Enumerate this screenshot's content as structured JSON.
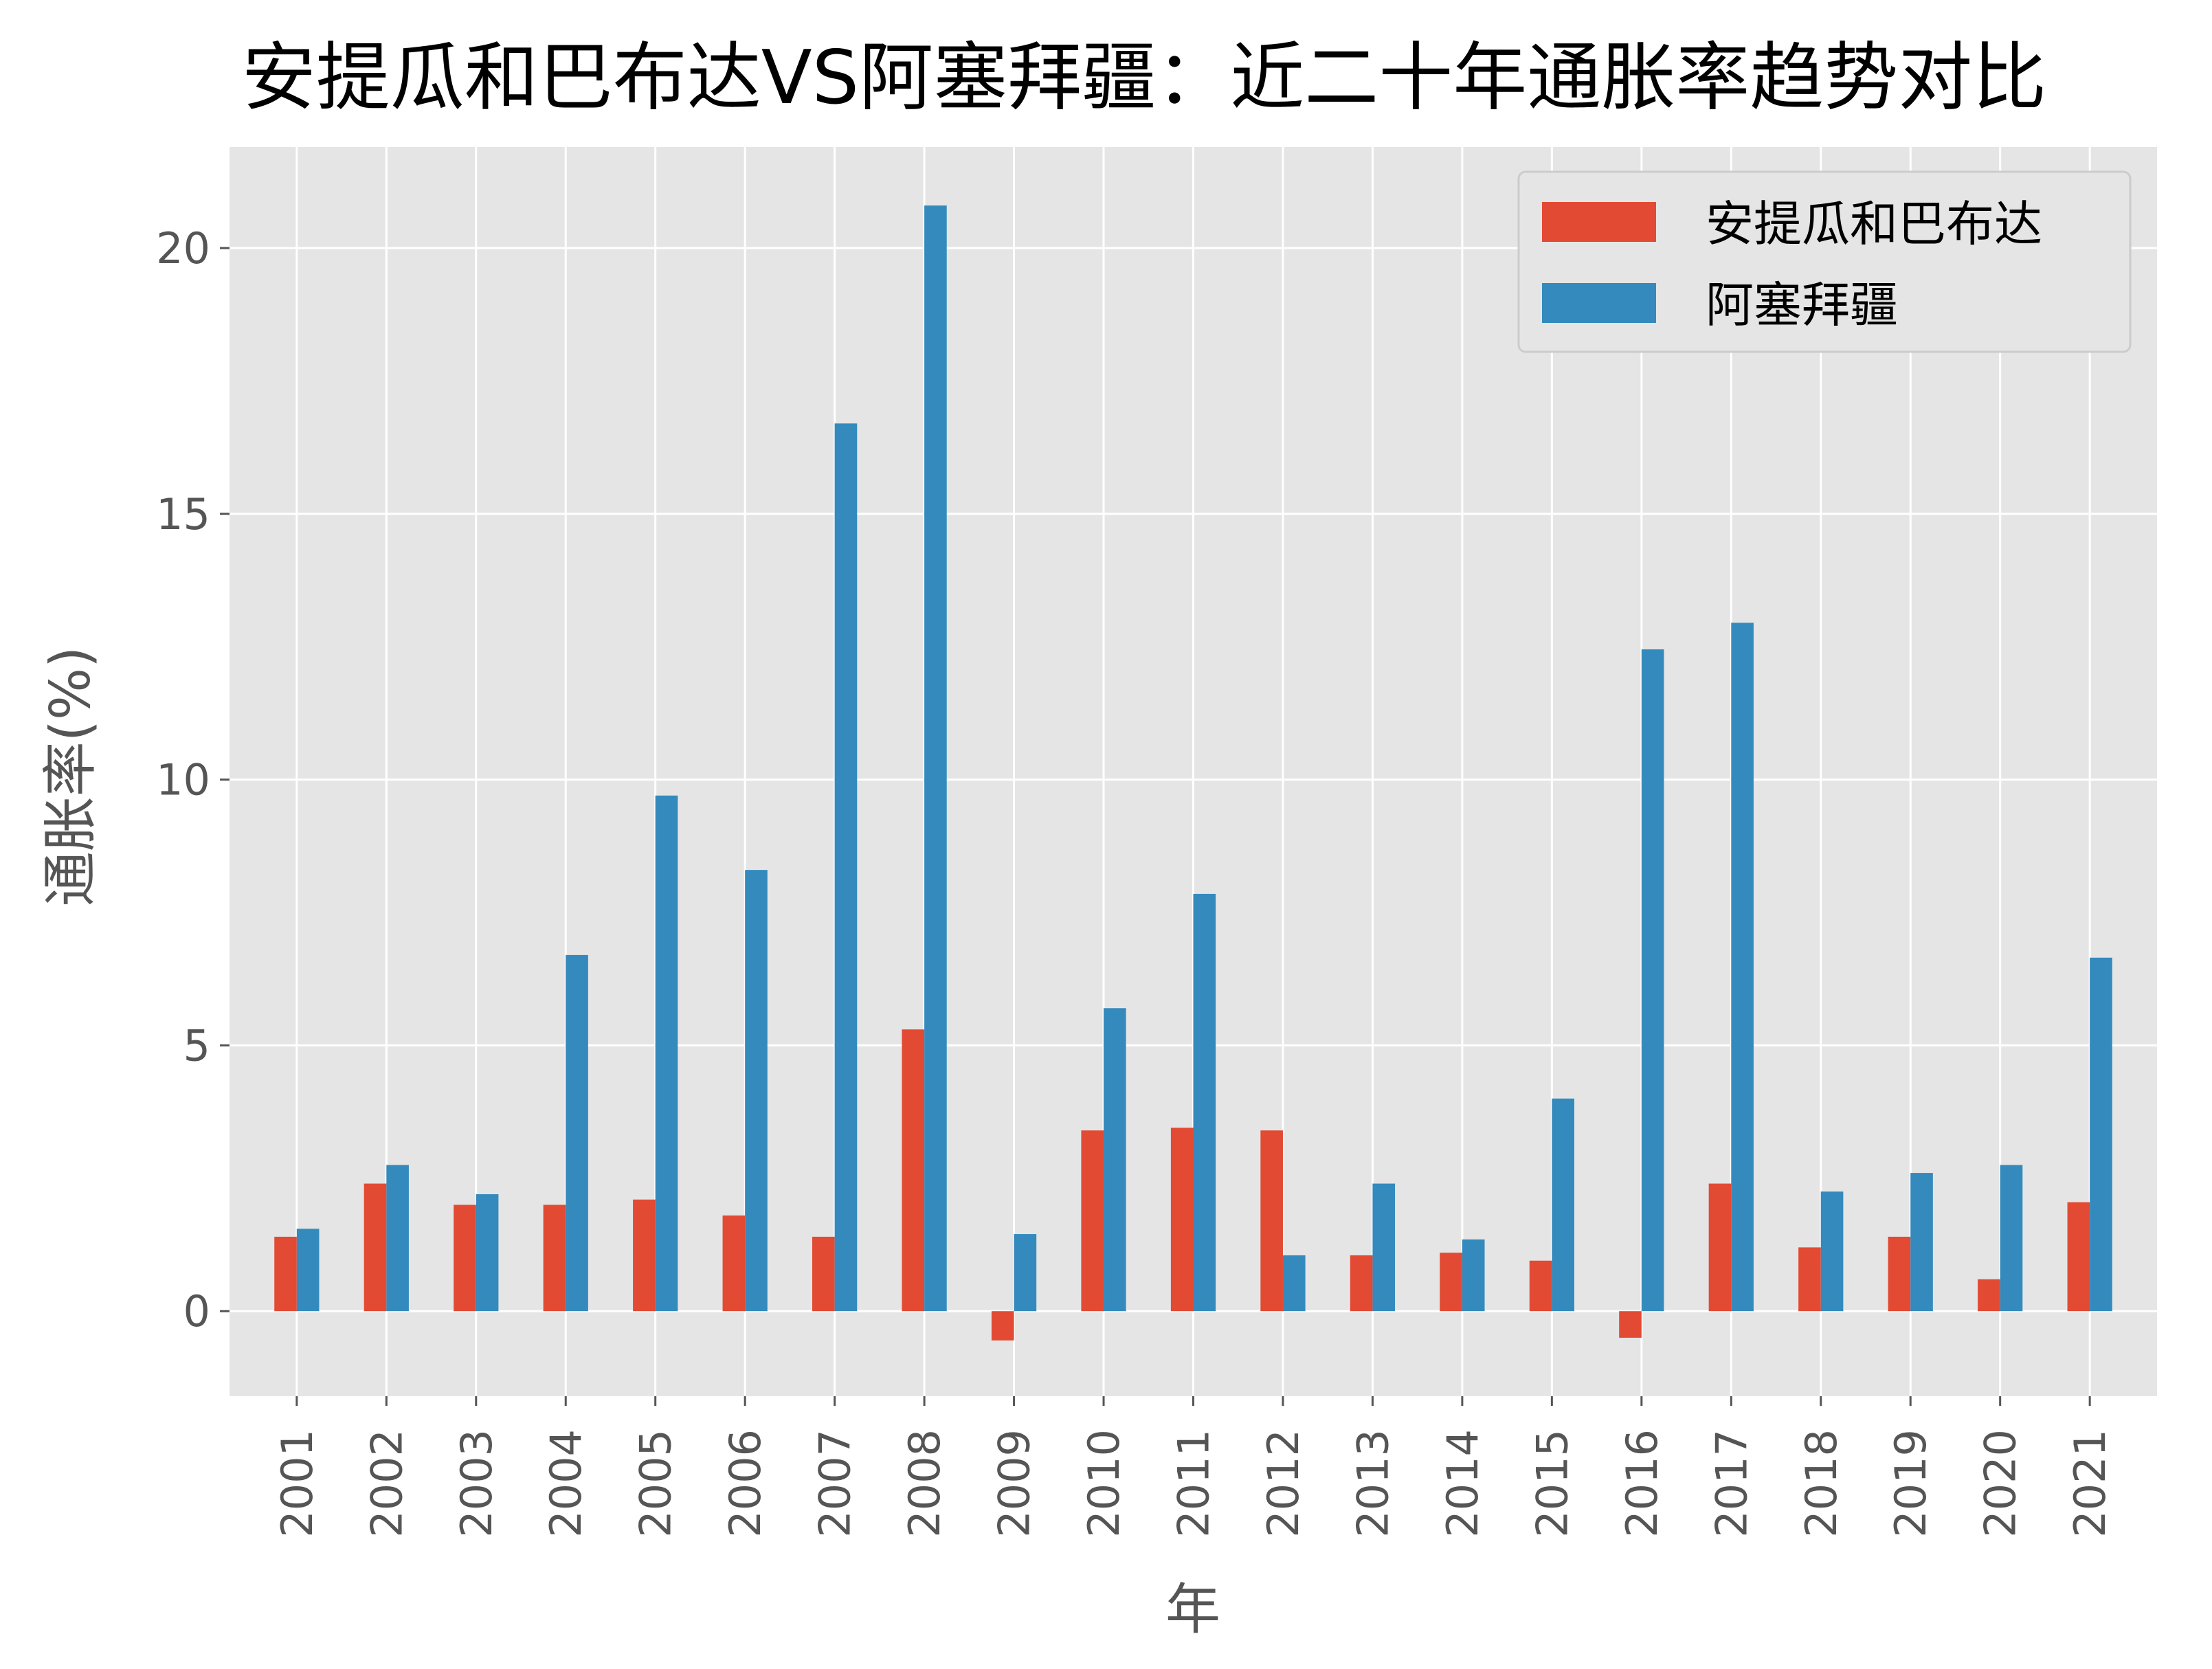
{
  "chart_data": {
    "type": "bar",
    "title": "安提瓜和巴布达VS阿塞拜疆：近二十年通胀率趋势对比",
    "xlabel": "年",
    "ylabel": "通胀率(%)",
    "categories": [
      "2001",
      "2002",
      "2003",
      "2004",
      "2005",
      "2006",
      "2007",
      "2008",
      "2009",
      "2010",
      "2011",
      "2012",
      "2013",
      "2014",
      "2015",
      "2016",
      "2017",
      "2018",
      "2019",
      "2020",
      "2021"
    ],
    "series": [
      {
        "name": "安提瓜和巴布达",
        "color": "#E24A33",
        "values": [
          1.4,
          2.4,
          2.0,
          2.0,
          2.1,
          1.8,
          1.4,
          5.3,
          -0.55,
          3.4,
          3.45,
          3.4,
          1.05,
          1.1,
          0.95,
          -0.5,
          2.4,
          1.2,
          1.4,
          0.6,
          2.05
        ]
      },
      {
        "name": "阿塞拜疆",
        "color": "#348ABD",
        "values": [
          1.55,
          2.75,
          2.2,
          6.7,
          9.7,
          8.3,
          16.7,
          20.8,
          1.45,
          5.7,
          7.85,
          1.05,
          2.4,
          1.35,
          4.0,
          12.45,
          12.95,
          2.25,
          2.6,
          2.75,
          6.65
        ]
      }
    ],
    "yticks": [
      0,
      5,
      10,
      15,
      20
    ],
    "ylim": [
      -1.6,
      21.9
    ],
    "grid": true,
    "legend": "top-right",
    "colors": {
      "background": "#E5E5E5",
      "grid": "#FFFFFF",
      "tick_text": "#555555"
    }
  }
}
